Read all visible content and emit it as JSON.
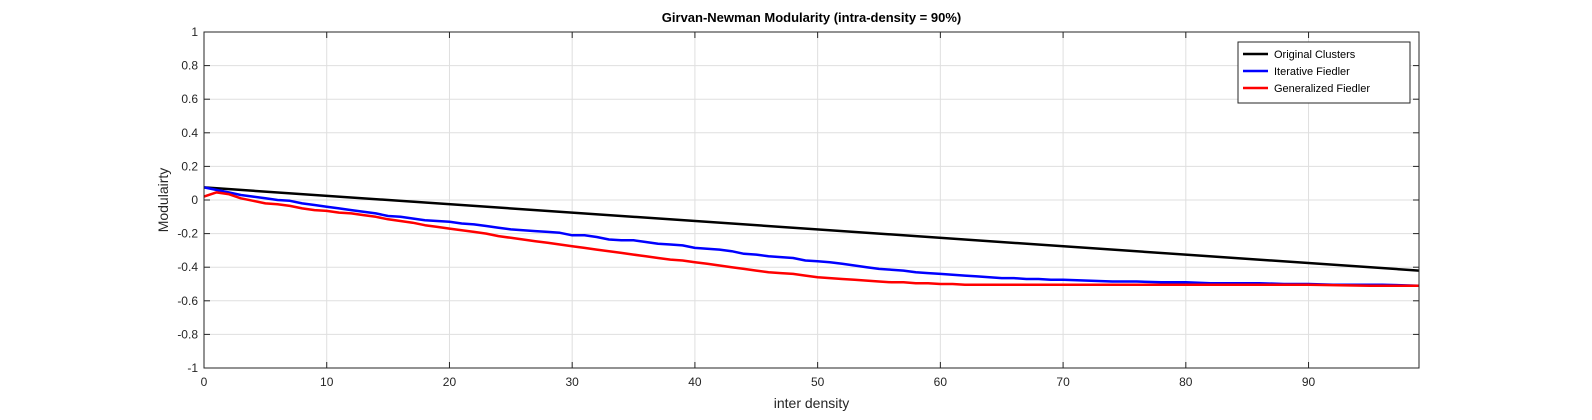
{
  "chart_data": {
    "type": "line",
    "title": "Girvan-Newman Modularity (intra-density = 90%)",
    "xlabel": "inter density",
    "ylabel": "Modulairty",
    "xlim": [
      0,
      99
    ],
    "ylim": [
      -1,
      1
    ],
    "xticks": [
      "0",
      "10",
      "20",
      "30",
      "40",
      "50",
      "60",
      "70",
      "80",
      "90"
    ],
    "yticks": [
      "1",
      "0.8",
      "0.6",
      "0.4",
      "0.2",
      "0",
      "-0.2",
      "-0.4",
      "-0.6",
      "-0.8",
      "-1"
    ],
    "grid": true,
    "legend_position": "top-right",
    "series": [
      {
        "name": "Original Clusters",
        "color": "#000000",
        "x": [
          0,
          99
        ],
        "y": [
          0.075,
          -0.42
        ]
      },
      {
        "name": "Iterative Fiedler",
        "color": "#0000ff",
        "x": [
          0,
          1,
          2,
          3,
          4,
          5,
          6,
          7,
          8,
          9,
          10,
          11,
          12,
          13,
          14,
          15,
          16,
          17,
          18,
          19,
          20,
          21,
          22,
          23,
          24,
          25,
          26,
          27,
          28,
          29,
          30,
          31,
          32,
          33,
          34,
          35,
          36,
          37,
          38,
          39,
          40,
          41,
          42,
          43,
          44,
          45,
          46,
          47,
          48,
          49,
          50,
          51,
          52,
          53,
          54,
          55,
          56,
          57,
          58,
          59,
          60,
          61,
          62,
          63,
          64,
          65,
          66,
          67,
          68,
          69,
          70,
          72,
          74,
          76,
          78,
          80,
          82,
          84,
          86,
          88,
          90,
          92,
          94,
          96,
          99
        ],
        "y": [
          0.075,
          0.06,
          0.045,
          0.03,
          0.02,
          0.01,
          0.0,
          -0.005,
          -0.02,
          -0.03,
          -0.04,
          -0.05,
          -0.06,
          -0.07,
          -0.08,
          -0.095,
          -0.1,
          -0.11,
          -0.12,
          -0.125,
          -0.13,
          -0.14,
          -0.145,
          -0.155,
          -0.165,
          -0.175,
          -0.18,
          -0.185,
          -0.19,
          -0.195,
          -0.21,
          -0.21,
          -0.22,
          -0.235,
          -0.24,
          -0.24,
          -0.25,
          -0.26,
          -0.265,
          -0.27,
          -0.285,
          -0.29,
          -0.295,
          -0.305,
          -0.32,
          -0.325,
          -0.335,
          -0.34,
          -0.345,
          -0.36,
          -0.365,
          -0.37,
          -0.38,
          -0.39,
          -0.4,
          -0.41,
          -0.415,
          -0.42,
          -0.43,
          -0.435,
          -0.44,
          -0.445,
          -0.45,
          -0.455,
          -0.46,
          -0.465,
          -0.465,
          -0.47,
          -0.47,
          -0.475,
          -0.475,
          -0.48,
          -0.485,
          -0.485,
          -0.49,
          -0.49,
          -0.495,
          -0.495,
          -0.495,
          -0.5,
          -0.5,
          -0.505,
          -0.505,
          -0.505,
          -0.51
        ]
      },
      {
        "name": "Generalized Fiedler",
        "color": "#ff0000",
        "x": [
          0,
          1,
          2,
          3,
          4,
          5,
          6,
          7,
          8,
          9,
          10,
          11,
          12,
          13,
          14,
          15,
          16,
          17,
          18,
          19,
          20,
          21,
          22,
          23,
          24,
          25,
          26,
          27,
          28,
          29,
          30,
          31,
          32,
          33,
          34,
          35,
          36,
          37,
          38,
          39,
          40,
          41,
          42,
          43,
          44,
          45,
          46,
          47,
          48,
          49,
          50,
          51,
          52,
          53,
          54,
          55,
          56,
          57,
          58,
          59,
          60,
          61,
          62,
          64,
          66,
          68,
          70,
          75,
          80,
          85,
          90,
          95,
          99
        ],
        "y": [
          0.02,
          0.045,
          0.035,
          0.01,
          -0.005,
          -0.02,
          -0.025,
          -0.035,
          -0.05,
          -0.06,
          -0.065,
          -0.075,
          -0.08,
          -0.09,
          -0.1,
          -0.115,
          -0.125,
          -0.135,
          -0.15,
          -0.16,
          -0.17,
          -0.18,
          -0.19,
          -0.2,
          -0.215,
          -0.225,
          -0.235,
          -0.245,
          -0.255,
          -0.265,
          -0.275,
          -0.285,
          -0.295,
          -0.305,
          -0.315,
          -0.325,
          -0.335,
          -0.345,
          -0.355,
          -0.36,
          -0.37,
          -0.38,
          -0.39,
          -0.4,
          -0.41,
          -0.42,
          -0.43,
          -0.435,
          -0.44,
          -0.45,
          -0.46,
          -0.465,
          -0.47,
          -0.475,
          -0.48,
          -0.485,
          -0.49,
          -0.49,
          -0.495,
          -0.495,
          -0.5,
          -0.5,
          -0.505,
          -0.505,
          -0.505,
          -0.505,
          -0.505,
          -0.505,
          -0.505,
          -0.505,
          -0.505,
          -0.51,
          -0.51
        ]
      }
    ]
  }
}
